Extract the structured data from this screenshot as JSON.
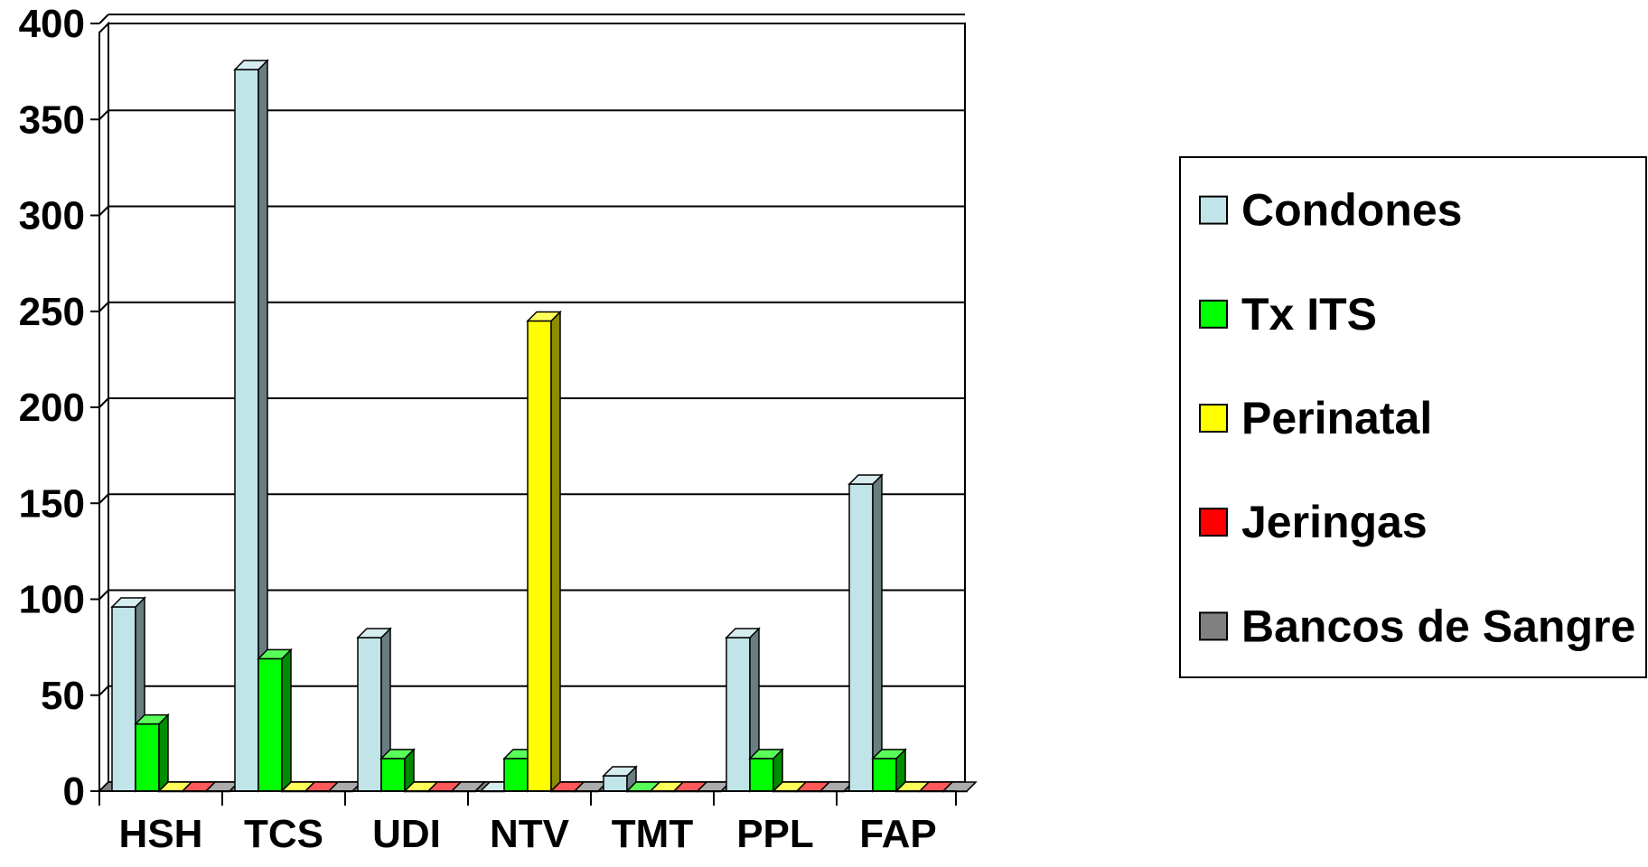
{
  "chart_data": {
    "type": "bar",
    "categories": [
      "HSH",
      "TCS",
      "UDI",
      "NTV",
      "TMT",
      "PPL",
      "FAP"
    ],
    "series": [
      {
        "name": "Condones",
        "color": "#C0E4E8",
        "values": [
          96,
          376,
          80,
          0,
          8,
          80,
          160
        ]
      },
      {
        "name": "Tx ITS",
        "color": "#00FF00",
        "values": [
          35,
          69,
          17,
          17,
          0,
          17,
          17
        ]
      },
      {
        "name": "Perinatal",
        "color": "#FFFF00",
        "values": [
          0,
          0,
          0,
          245,
          0,
          0,
          0
        ]
      },
      {
        "name": "Jeringas",
        "color": "#FF0000",
        "values": [
          0,
          0,
          0,
          0,
          0,
          0,
          0
        ]
      },
      {
        "name": "Bancos de Sangre",
        "color": "#808080",
        "values": [
          0,
          0,
          0,
          0,
          0,
          0,
          0
        ]
      }
    ],
    "yticks": [
      "0",
      "50",
      "100",
      "150",
      "200",
      "250",
      "300",
      "350",
      "400"
    ],
    "ylim": [
      0,
      400
    ],
    "grid": true,
    "legend_position": "right"
  }
}
